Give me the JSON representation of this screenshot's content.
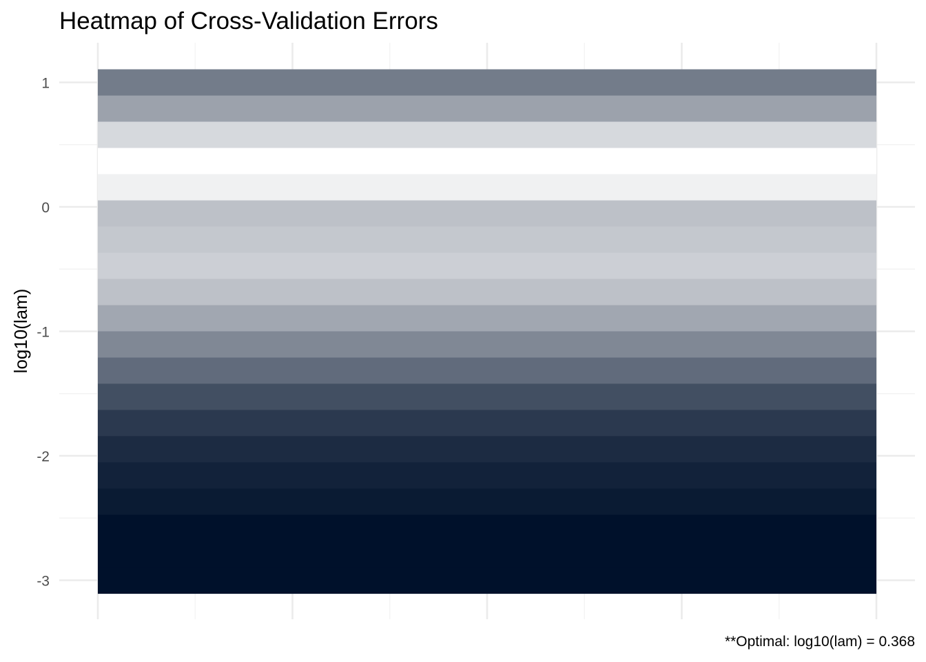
{
  "chart_data": {
    "type": "heatmap",
    "title": "Heatmap of Cross-Validation Errors",
    "xlabel": "",
    "ylabel": "log10(lam)",
    "caption": "**Optimal: log10(lam) = 0.368",
    "y_ticks": [
      "1",
      "0",
      "-1",
      "-2",
      "-3"
    ],
    "ylim": [
      -3.3,
      1.3
    ],
    "grid": true,
    "legend": "none",
    "colors": {
      "low_error": "#ffffff",
      "high_error": "#00112b",
      "grid": "#ebebeb"
    },
    "rows": [
      {
        "log10_lam": 1.0,
        "error_level": 0.55
      },
      {
        "log10_lam": 0.789,
        "error_level": 0.39
      },
      {
        "log10_lam": 0.579,
        "error_level": 0.16
      },
      {
        "log10_lam": 0.368,
        "error_level": 0.0
      },
      {
        "log10_lam": 0.158,
        "error_level": 0.06
      },
      {
        "log10_lam": -0.053,
        "error_level": 0.26
      },
      {
        "log10_lam": -0.263,
        "error_level": 0.23
      },
      {
        "log10_lam": -0.474,
        "error_level": 0.2
      },
      {
        "log10_lam": -0.684,
        "error_level": 0.26
      },
      {
        "log10_lam": -0.895,
        "error_level": 0.37
      },
      {
        "log10_lam": -1.105,
        "error_level": 0.5
      },
      {
        "log10_lam": -1.316,
        "error_level": 0.62
      },
      {
        "log10_lam": -1.526,
        "error_level": 0.74
      },
      {
        "log10_lam": -1.737,
        "error_level": 0.83
      },
      {
        "log10_lam": -1.947,
        "error_level": 0.89
      },
      {
        "log10_lam": -2.158,
        "error_level": 0.93
      },
      {
        "log10_lam": -2.368,
        "error_level": 0.96
      },
      {
        "log10_lam": -2.579,
        "error_level": 1.0
      },
      {
        "log10_lam": -2.789,
        "error_level": 1.0
      },
      {
        "log10_lam": -3.0,
        "error_level": 1.0
      }
    ]
  }
}
